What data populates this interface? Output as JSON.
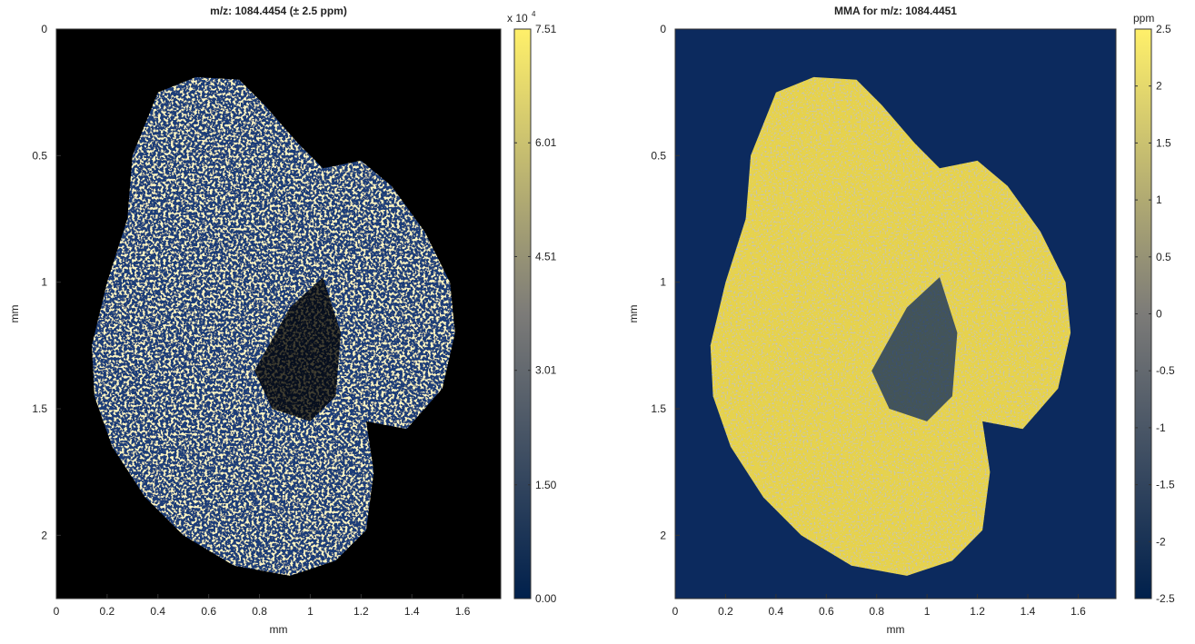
{
  "chart_data": [
    {
      "type": "heatmap",
      "title": "m/z: 1084.4454 (± 2.5 ppm)",
      "xlabel": "mm",
      "ylabel": "mm",
      "xlim": [
        0,
        1.75
      ],
      "ylim": [
        0,
        2.25
      ],
      "y_reversed": true,
      "xticks": [
        0,
        0.2,
        0.4,
        0.6,
        0.8,
        1,
        1.2,
        1.4,
        1.6
      ],
      "yticks": [
        0,
        0.5,
        1,
        1.5,
        2
      ],
      "background": "#000000",
      "tissue_color": "#1d3d78",
      "speckle": true,
      "colormap": [
        "#00204c",
        "#7c7b78",
        "#fff06a"
      ],
      "colorbar": {
        "clim": [
          0,
          7.51
        ],
        "multiplier": "x 10",
        "exponent": "4",
        "ticks": [
          {
            "value": 0,
            "label": "0.00"
          },
          {
            "value": 1.5,
            "label": "1.50"
          },
          3.01,
          4.51,
          6.01,
          7.51
        ]
      }
    },
    {
      "type": "heatmap",
      "title": "MMA for m/z: 1084.4451",
      "xlabel": "mm",
      "ylabel": "mm",
      "xlim": [
        0,
        1.75
      ],
      "ylim": [
        0,
        2.25
      ],
      "y_reversed": true,
      "xticks": [
        0,
        0.2,
        0.4,
        0.6,
        0.8,
        1,
        1.2,
        1.4,
        1.6
      ],
      "yticks": [
        0,
        0.5,
        1,
        1.5,
        2
      ],
      "background": "#0c2a5e",
      "tissue_color": "#e6d24e",
      "speckle": false,
      "colormap": [
        "#00204c",
        "#7c7b78",
        "#fff06a"
      ],
      "colorbar": {
        "clim": [
          -2.5,
          2.5
        ],
        "label": "ppm",
        "ticks": [
          -2.5,
          -2,
          -1.5,
          -1,
          -0.5,
          0,
          0.5,
          1,
          1.5,
          2,
          2.5
        ]
      }
    }
  ]
}
